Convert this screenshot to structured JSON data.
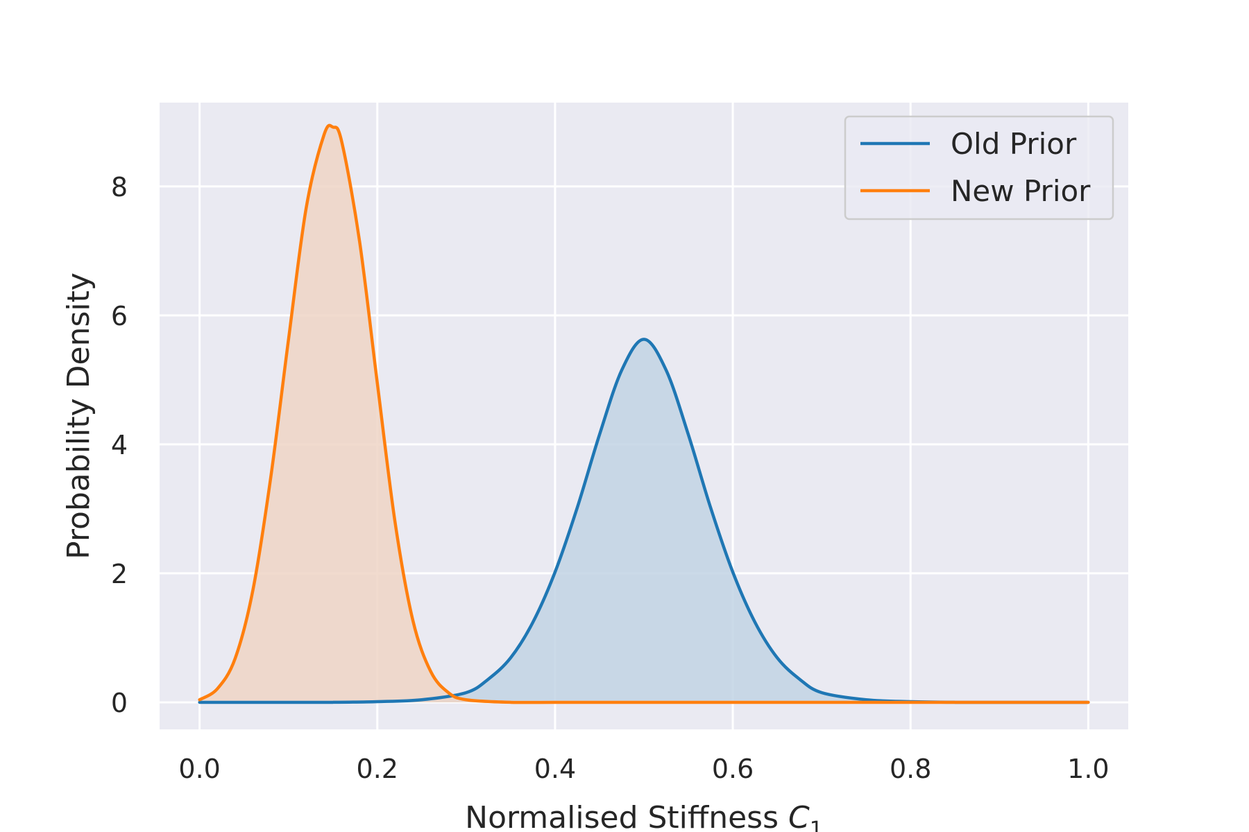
{
  "chart_data": {
    "type": "area",
    "xlabel": "Normalised Stiffness",
    "xlabel_symbol": "C",
    "xlabel_subscript": "1",
    "ylabel": "Probability Density",
    "xlim": [
      -0.045,
      1.045
    ],
    "ylim": [
      -0.42,
      9.3
    ],
    "x_ticks": [
      0.0,
      0.2,
      0.4,
      0.6,
      0.8,
      1.0
    ],
    "x_tick_labels": [
      "0.0",
      "0.2",
      "0.4",
      "0.6",
      "0.8",
      "1.0"
    ],
    "y_ticks": [
      0,
      2,
      4,
      6,
      8
    ],
    "y_tick_labels": [
      "0",
      "2",
      "4",
      "6",
      "8"
    ],
    "grid": true,
    "legend_position": "top-right",
    "series": [
      {
        "name": "Old Prior",
        "color": "#1f77b4",
        "fill": "#c2d3e4",
        "x": [
          0.0,
          0.05,
          0.1,
          0.15,
          0.2,
          0.25,
          0.3,
          0.325,
          0.35,
          0.375,
          0.4,
          0.425,
          0.45,
          0.475,
          0.5,
          0.525,
          0.55,
          0.575,
          0.6,
          0.625,
          0.65,
          0.675,
          0.7,
          0.75,
          0.8,
          0.85,
          0.9,
          0.95,
          1.0
        ],
        "values": [
          0.0,
          0.0,
          0.0,
          0.0,
          0.01,
          0.04,
          0.15,
          0.36,
          0.69,
          1.24,
          2.02,
          3.02,
          4.15,
          5.15,
          5.63,
          5.15,
          4.15,
          3.02,
          2.02,
          1.24,
          0.69,
          0.36,
          0.15,
          0.04,
          0.01,
          0.0,
          0.0,
          0.0,
          0.0
        ]
      },
      {
        "name": "New Prior",
        "color": "#ff7f0e",
        "fill": "#efd5c5",
        "x": [
          0.0,
          0.02,
          0.04,
          0.06,
          0.08,
          0.1,
          0.12,
          0.14,
          0.15,
          0.16,
          0.18,
          0.2,
          0.22,
          0.24,
          0.26,
          0.28,
          0.3,
          0.35,
          0.4,
          0.5,
          0.6,
          0.8,
          1.0
        ],
        "values": [
          0.04,
          0.21,
          0.68,
          1.74,
          3.48,
          5.62,
          7.67,
          8.8,
          8.92,
          8.69,
          7.15,
          4.95,
          2.79,
          1.27,
          0.48,
          0.15,
          0.04,
          0.0,
          0.0,
          0.0,
          0.0,
          0.0,
          0.0
        ]
      }
    ]
  }
}
